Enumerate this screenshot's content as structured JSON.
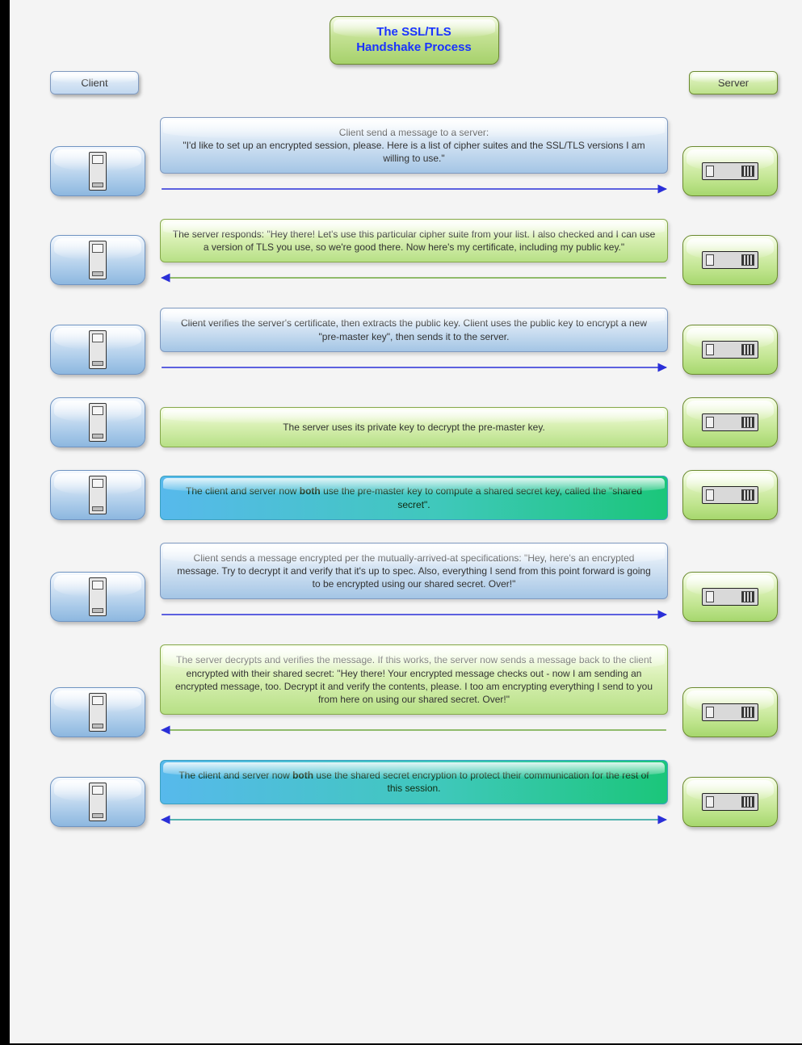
{
  "title_line1": "The SSL/TLS",
  "title_line2": "Handshake Process",
  "roles": {
    "client": "Client",
    "server": "Server"
  },
  "colors": {
    "arrow_client_to_server": "#2a2fd8",
    "arrow_server_to_client": "#6ea83e",
    "arrow_both": "#1f9e99"
  },
  "steps": [
    {
      "box_style": "blue",
      "text": "Client send a message to a server:\n\"I'd like to set up an encrypted session, please. Here is a list of cipher suites and the SSL/TLS versions I am willing to use.\"",
      "arrow": "right"
    },
    {
      "box_style": "green",
      "text": "The server responds: \"Hey there! Let's use this particular cipher suite from your list. I also checked and I can use a version of TLS you use, so we're good there. Now here's my certificate, including my public key.\"",
      "arrow": "left"
    },
    {
      "box_style": "blue",
      "text": "Client verifies the server's certificate, then extracts the public key. Client uses the public key to encrypt a new \"pre-master key\", then sends it to the server.",
      "arrow": "right"
    },
    {
      "box_style": "green",
      "text": "The server uses its private key to decrypt the pre-master key.",
      "arrow": "none"
    },
    {
      "box_style": "mix",
      "text_html": "The client and server now <b>both</b> use the pre-master key to compute a shared secret key, called the \"shared secret\".",
      "arrow": "none"
    },
    {
      "box_style": "blue",
      "text": "Client sends a message encrypted per the mutually-arrived-at specifications: \"Hey, here's an encrypted message. Try to decrypt it and verify that it's up to spec. Also, everything I send from this point forward is going to be encrypted using our shared secret. Over!\"",
      "arrow": "right"
    },
    {
      "box_style": "green",
      "text": "The server decrypts and verifies the message. If this works, the server now sends a message back to the client encrypted with their shared secret: \"Hey there! Your encrypted message checks out - now I am sending an encrypted message, too. Decrypt it and verify the contents, please. I too am encrypting everything I send to you from here on using our shared secret. Over!\"",
      "arrow": "left"
    },
    {
      "box_style": "mix",
      "text_html": "The client and server now <b>both</b> use the shared secret encryption to protect their communication for the rest of this session.",
      "arrow": "both"
    }
  ]
}
